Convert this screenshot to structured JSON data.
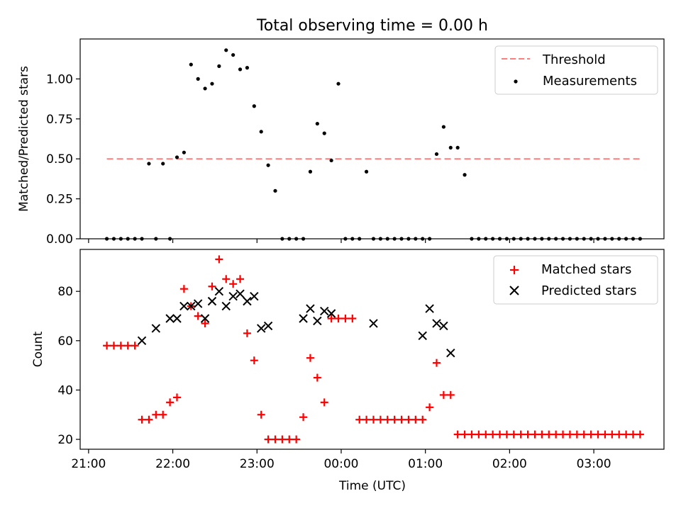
{
  "figure": {
    "title": "Total observing time = 0.00 h"
  },
  "xaxis": {
    "label": "Time (UTC)",
    "ticks": [
      {
        "t": 0,
        "label": "21:00"
      },
      {
        "t": 60,
        "label": "22:00"
      },
      {
        "t": 120,
        "label": "23:00"
      },
      {
        "t": 180,
        "label": "00:00"
      },
      {
        "t": 240,
        "label": "01:00"
      },
      {
        "t": 300,
        "label": "02:00"
      },
      {
        "t": 360,
        "label": "03:00"
      }
    ]
  },
  "chart_data": [
    {
      "type": "scatter",
      "title": "",
      "ylabel": "Matched/Predicted stars",
      "xlim": [
        -6,
        410
      ],
      "ylim": [
        0,
        1.25
      ],
      "yticks": [
        {
          "v": 0.0,
          "label": "0.00"
        },
        {
          "v": 0.25,
          "label": "0.25"
        },
        {
          "v": 0.5,
          "label": "0.50"
        },
        {
          "v": 0.75,
          "label": "0.75"
        },
        {
          "v": 1.0,
          "label": "1.00"
        }
      ],
      "legend_position": "top-right",
      "threshold": {
        "name": "Threshold",
        "value": 0.5,
        "x_start": 13,
        "x_end": 393,
        "color": "#ff7f7f"
      },
      "series": [
        {
          "name": "Measurements",
          "color": "#000000",
          "marker": "dot",
          "x": [
            13,
            18,
            23,
            28,
            33,
            38,
            43,
            48,
            53,
            58,
            63,
            68,
            73,
            78,
            83,
            88,
            93,
            98,
            103,
            108,
            113,
            118,
            123,
            128,
            133,
            138,
            143,
            148,
            153,
            158,
            163,
            168,
            173,
            178,
            183,
            188,
            193,
            198,
            203,
            208,
            213,
            218,
            223,
            228,
            233,
            238,
            243,
            248,
            253,
            258,
            263,
            268,
            273,
            278,
            283,
            288,
            293,
            298,
            303,
            308,
            313,
            318,
            323,
            328,
            333,
            338,
            343,
            348,
            353,
            358,
            363,
            368,
            373,
            378,
            383,
            388,
            393
          ],
          "y": [
            0,
            0,
            0,
            0,
            0,
            0,
            0.47,
            0,
            0.47,
            0,
            0.51,
            0.54,
            1.09,
            1.0,
            0.94,
            0.97,
            1.08,
            1.18,
            1.15,
            1.06,
            1.07,
            0.83,
            0.67,
            0.46,
            0.3,
            0,
            0,
            0,
            0,
            0.42,
            0.72,
            0.66,
            0.49,
            0.97,
            0,
            0,
            0,
            0.42,
            0,
            0,
            0,
            0,
            0,
            0,
            0,
            0,
            0,
            0.53,
            0.7,
            0.57,
            0.57,
            0.4,
            0,
            0,
            0,
            0,
            0,
            0,
            0,
            0,
            0,
            0,
            0,
            0,
            0,
            0,
            0,
            0,
            0,
            0,
            0,
            0,
            0,
            0,
            0,
            0,
            0
          ]
        }
      ]
    },
    {
      "type": "scatter",
      "title": "",
      "ylabel": "Count",
      "xlim": [
        -6,
        410
      ],
      "ylim": [
        16,
        97
      ],
      "yticks": [
        {
          "v": 20,
          "label": "20"
        },
        {
          "v": 40,
          "label": "40"
        },
        {
          "v": 60,
          "label": "60"
        },
        {
          "v": 80,
          "label": "80"
        }
      ],
      "legend_position": "top-right",
      "series": [
        {
          "name": "Matched stars",
          "color": "#ff0000",
          "marker": "plus",
          "x": [
            13,
            18,
            23,
            28,
            33,
            38,
            43,
            48,
            53,
            58,
            63,
            68,
            73,
            78,
            83,
            88,
            93,
            98,
            103,
            108,
            113,
            118,
            123,
            128,
            133,
            138,
            143,
            148,
            153,
            158,
            163,
            168,
            173,
            178,
            183,
            188,
            193,
            198,
            203,
            208,
            213,
            218,
            223,
            228,
            233,
            238,
            243,
            248,
            253,
            258,
            263,
            268,
            273,
            278,
            283,
            288,
            293,
            298,
            303,
            308,
            313,
            318,
            323,
            328,
            333,
            338,
            343,
            348,
            353,
            358,
            363,
            368,
            373,
            378,
            383,
            388,
            393
          ],
          "y": [
            58,
            58,
            58,
            58,
            58,
            28,
            28,
            30,
            30,
            35,
            37,
            81,
            74,
            70,
            67,
            82,
            93,
            85,
            83,
            85,
            63,
            52,
            30,
            20,
            20,
            20,
            20,
            20,
            29,
            53,
            45,
            35,
            69,
            69,
            69,
            69,
            28,
            28,
            28,
            28,
            28,
            28,
            28,
            28,
            28,
            28,
            33,
            51,
            38,
            38,
            22,
            22,
            22,
            22,
            22,
            22,
            22,
            22,
            22,
            22,
            22,
            22,
            22,
            22,
            22,
            22,
            22,
            22,
            22,
            22,
            22,
            22,
            22,
            22,
            22,
            22,
            22
          ]
        },
        {
          "name": "Predicted stars",
          "color": "#000000",
          "marker": "x",
          "x": [
            38,
            48,
            58,
            63,
            68,
            73,
            78,
            83,
            88,
            93,
            98,
            103,
            108,
            113,
            118,
            123,
            128,
            153,
            158,
            163,
            168,
            173,
            203,
            238,
            243,
            248,
            253,
            258
          ],
          "y": [
            60,
            65,
            69,
            69,
            74,
            74,
            75,
            69,
            76,
            80,
            74,
            78,
            79,
            76,
            78,
            65,
            66,
            69,
            73,
            68,
            72,
            71,
            67,
            62,
            73,
            67,
            66,
            55
          ]
        }
      ]
    }
  ]
}
